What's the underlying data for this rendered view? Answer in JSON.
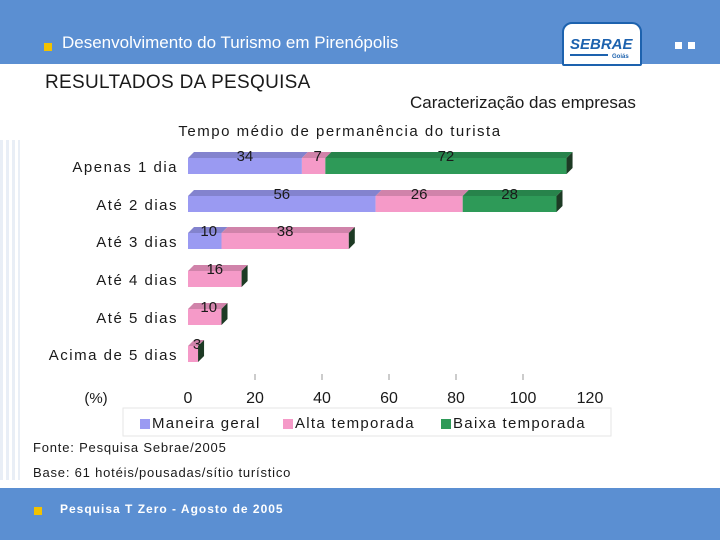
{
  "header": {
    "title": "Desenvolvimento do Turismo em Pirenópolis"
  },
  "logo": {
    "name": "SEBRAE",
    "sub": "Goiás"
  },
  "section_title": "RESULTADOS DA PESQUISA",
  "subtitle": "Caracterização das empresas",
  "chart_data": {
    "type": "bar",
    "orientation": "horizontal",
    "stacked": true,
    "title": "Tempo médio de permanência do turista",
    "xlabel": "(%)",
    "xlim": [
      0,
      120
    ],
    "xticks": [
      0,
      20,
      40,
      60,
      80,
      100,
      120
    ],
    "categories": [
      "Apenas 1 dia",
      "Até 2 dias",
      "Até 3 dias",
      "Até 4 dias",
      "Até 5 dias",
      "Acima de 5 dias"
    ],
    "series": [
      {
        "name": "Maneira geral",
        "color": "#9a9af2",
        "values": [
          34,
          56,
          10,
          0,
          0,
          0
        ]
      },
      {
        "name": "Alta temporada",
        "color": "#f59ac8",
        "values": [
          7,
          26,
          38,
          16,
          10,
          3
        ]
      },
      {
        "name": "Baixa temporada",
        "color": "#2e9a58",
        "values": [
          72,
          28,
          0,
          0,
          0,
          0
        ]
      }
    ],
    "legend": "bottom",
    "grid": false
  },
  "source": "Fonte: Pesquisa Sebrae/2005",
  "base": "Base: 61 hotéis/pousadas/sítio turístico",
  "footer": {
    "text": "Pesquisa T Zero - Agosto de 2005"
  },
  "colors": {
    "header": "#5b8fd2",
    "accent": "#f2c200"
  }
}
